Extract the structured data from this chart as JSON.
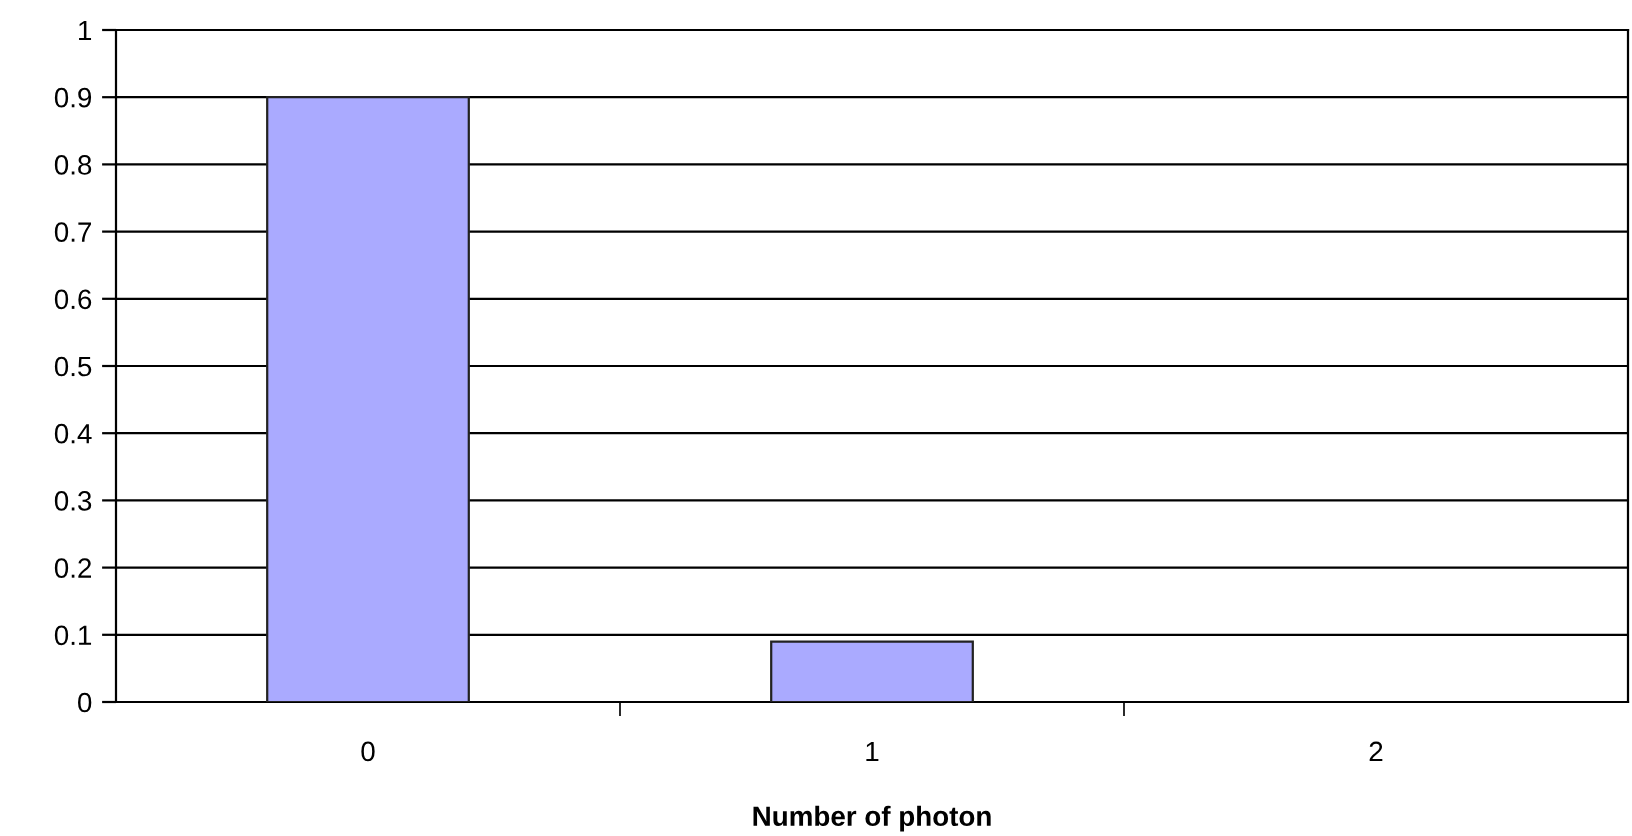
{
  "chart_data": {
    "type": "bar",
    "xlabel": "Number of photon",
    "categories": [
      "0",
      "1",
      "2"
    ],
    "values": [
      0.9,
      0.09,
      null
    ],
    "color": "#aaaaff",
    "ylim": [
      0,
      1
    ],
    "yticks": [
      0,
      0.1,
      0.2,
      0.3,
      0.4,
      0.5,
      0.6,
      0.7,
      0.8,
      0.9,
      1
    ],
    "grid": "y"
  }
}
